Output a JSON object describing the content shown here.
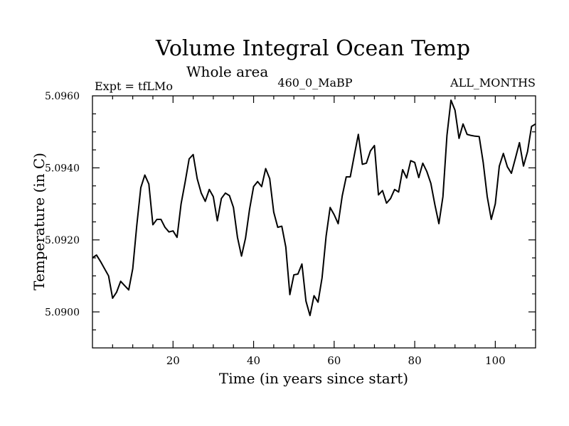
{
  "chart_data": {
    "type": "line",
    "title": "Volume Integral Ocean Temp",
    "subtitle": "Whole area",
    "annotations": {
      "left": "Expt = tfLMo",
      "center": "460_0_MaBP",
      "right": "ALL_MONTHS"
    },
    "xlabel": "Time (in years since start)",
    "ylabel": "Temperature (in C)",
    "xlim": [
      0,
      110
    ],
    "ylim": [
      5.089,
      5.096
    ],
    "xticks": [
      20,
      40,
      60,
      80,
      100
    ],
    "xtick_labels": [
      "20",
      "40",
      "60",
      "80",
      "100"
    ],
    "yticks": [
      5.09,
      5.092,
      5.094,
      5.096
    ],
    "ytick_labels": [
      "5.0900",
      "5.0920",
      "5.0940",
      "5.0960"
    ],
    "grid": false,
    "series": [
      {
        "name": "Temperature",
        "x": [
          0,
          1,
          2,
          3,
          4,
          5,
          6,
          7,
          8,
          9,
          10,
          11,
          12,
          13,
          14,
          15,
          16,
          17,
          18,
          19,
          20,
          21,
          22,
          23,
          24,
          25,
          26,
          27,
          28,
          29,
          30,
          31,
          32,
          33,
          34,
          35,
          36,
          37,
          38,
          39,
          40,
          41,
          42,
          43,
          44,
          45,
          46,
          47,
          48,
          49,
          50,
          51,
          52,
          53,
          54,
          55,
          56,
          57,
          58,
          59,
          60,
          61,
          62,
          63,
          64,
          65,
          66,
          67,
          68,
          69,
          70,
          71,
          72,
          73,
          74,
          75,
          76,
          77,
          78,
          79,
          80,
          81,
          82,
          83,
          84,
          85,
          86,
          87,
          88,
          89,
          90,
          91,
          92,
          93,
          94,
          95,
          96,
          97,
          98,
          99,
          100,
          101,
          102,
          103,
          104,
          105,
          106,
          107,
          108,
          109,
          110
        ],
        "values": [
          5.0915,
          5.09158,
          5.0914,
          5.0912,
          5.091,
          5.09038,
          5.09055,
          5.09085,
          5.09073,
          5.09061,
          5.0912,
          5.0924,
          5.09345,
          5.0938,
          5.09355,
          5.09242,
          5.09257,
          5.09257,
          5.09235,
          5.09222,
          5.09225,
          5.09207,
          5.093,
          5.0936,
          5.09425,
          5.09437,
          5.0937,
          5.0933,
          5.09307,
          5.0934,
          5.0932,
          5.09253,
          5.09315,
          5.0933,
          5.09323,
          5.0929,
          5.09207,
          5.09155,
          5.09205,
          5.09285,
          5.09348,
          5.09362,
          5.09348,
          5.09398,
          5.0937,
          5.09277,
          5.09235,
          5.09238,
          5.0918,
          5.09048,
          5.09103,
          5.09105,
          5.09133,
          5.0903,
          5.0899,
          5.09045,
          5.09027,
          5.09095,
          5.0921,
          5.0929,
          5.0927,
          5.09245,
          5.09322,
          5.09375,
          5.09375,
          5.09435,
          5.09493,
          5.0941,
          5.09413,
          5.09447,
          5.09462,
          5.09325,
          5.09337,
          5.09302,
          5.09315,
          5.0934,
          5.09333,
          5.09395,
          5.09372,
          5.0942,
          5.09415,
          5.09373,
          5.09413,
          5.0939,
          5.09357,
          5.09298,
          5.09245,
          5.0932,
          5.0949,
          5.09588,
          5.0956,
          5.09482,
          5.09522,
          5.09493,
          5.0949,
          5.09488,
          5.09487,
          5.09415,
          5.0932,
          5.09257,
          5.093,
          5.09405,
          5.0944,
          5.09403,
          5.09385,
          5.09427,
          5.0947,
          5.09405,
          5.09445,
          5.09515,
          5.09522
        ]
      }
    ]
  }
}
